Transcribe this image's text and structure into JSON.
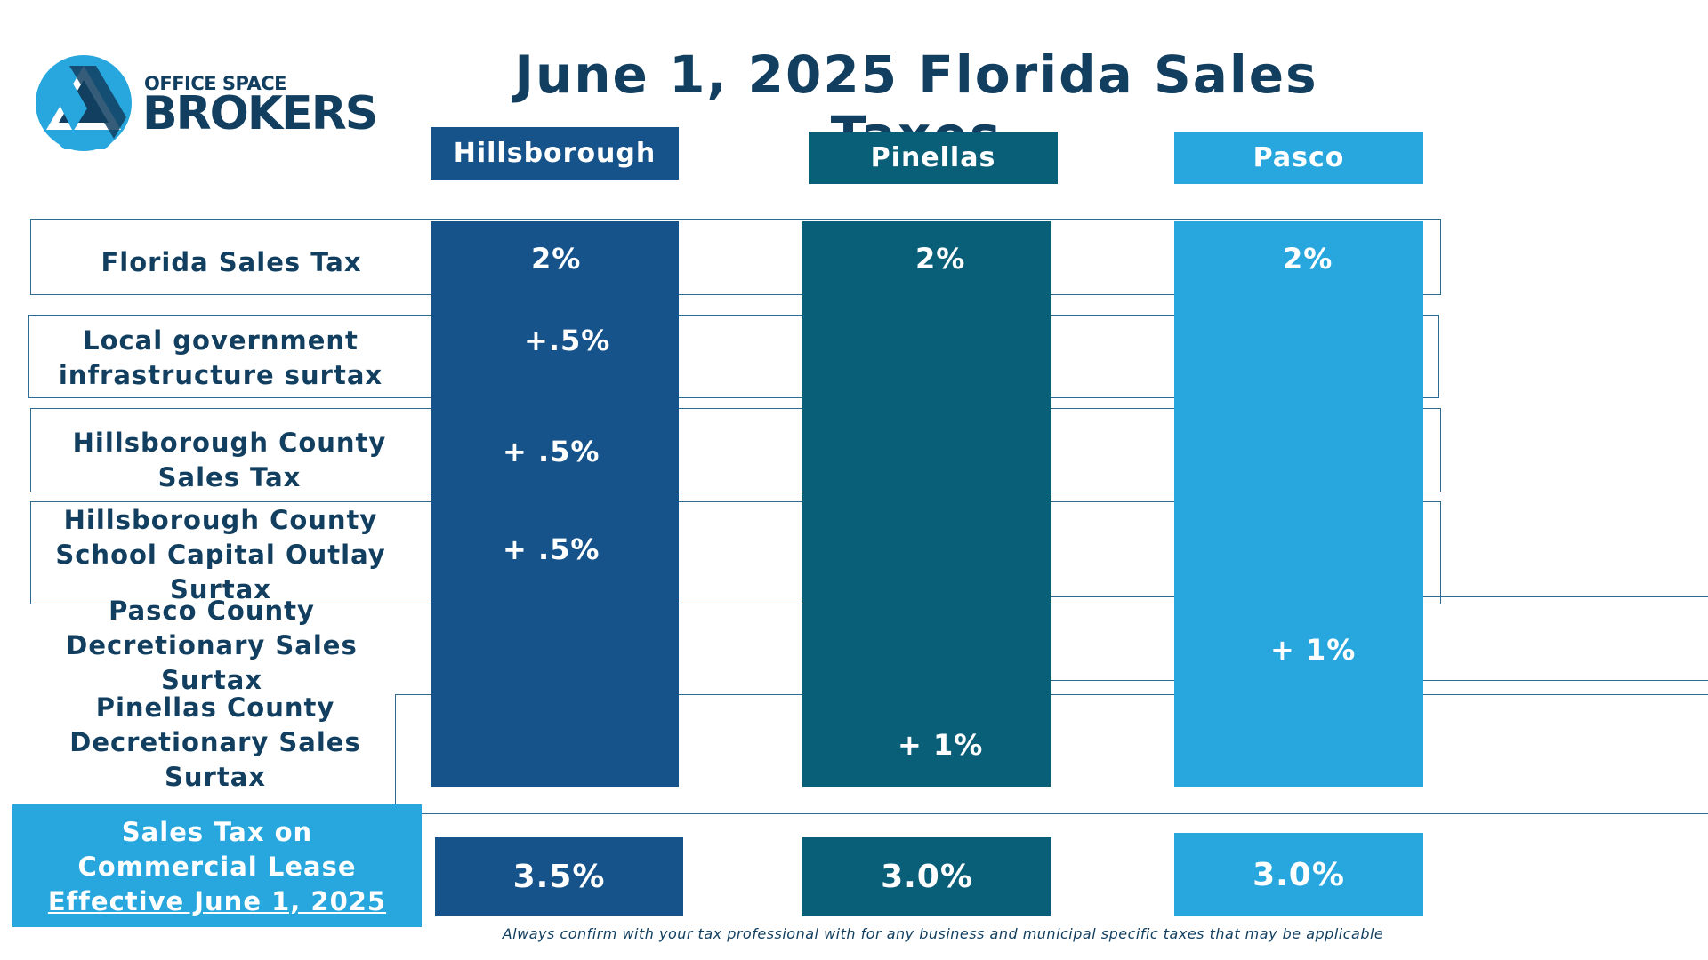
{
  "logo": {
    "line1": "OFFICE SPACE",
    "line2": "BROKERS"
  },
  "title": "June 1, 2025 Florida Sales Taxes",
  "columns": [
    {
      "label": "Hillsborough",
      "color": "#16538a"
    },
    {
      "label": "Pinellas",
      "color": "#0a5f78"
    },
    {
      "label": "Pasco",
      "color": "#27a7de"
    }
  ],
  "rows": {
    "florida": "Florida Sales Tax",
    "local_line1": "Local government",
    "local_line2": "infrastructure surtax",
    "hills_sales_line1": "Hillsborough County",
    "hills_sales_line2": "Sales Tax",
    "hills_school_line1": "Hillsborough County",
    "hills_school_line2": "School Capital Outlay",
    "hills_school_line3": "Surtax",
    "pasco_line1": "Pasco County",
    "pasco_line2": "Decretionary Sales",
    "pasco_line3": "Surtax",
    "pinellas_line1": "Pinellas County",
    "pinellas_line2": "Decretionary Sales",
    "pinellas_line3": "Surtax"
  },
  "values": {
    "hills_florida": "2%",
    "pin_florida": "2%",
    "pasco_florida": "2%",
    "hills_local": "+.5%",
    "hills_sales": "+ .5%",
    "hills_school": "+ .5%",
    "pasco_surtax": "+ 1%",
    "pin_surtax": "+ 1%"
  },
  "total": {
    "label_line1": "Sales Tax on",
    "label_line2": "Commercial Lease",
    "label_line3": "Effective June 1, 2025",
    "hills": "3.5%",
    "pin": "3.0%",
    "pasco": "3.0%"
  },
  "footnote": "Always confirm with your tax professional with for any business and municipal specific taxes that may be applicable"
}
